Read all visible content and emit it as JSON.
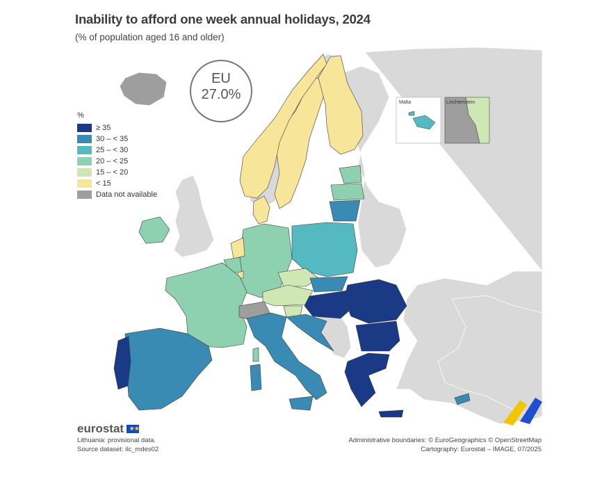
{
  "title": "Inability to afford one week annual holidays, 2024",
  "subtitle": "(% of population aged 16 and older)",
  "eu_badge": {
    "label": "EU",
    "value": "27.0%"
  },
  "legend": {
    "unit": "%",
    "items": [
      {
        "label": "≥ 35",
        "color": "#1a3a86"
      },
      {
        "label": "30 – < 35",
        "color": "#3a8bb4"
      },
      {
        "label": "25 – < 30",
        "color": "#55b9c2"
      },
      {
        "label": "20 – < 25",
        "color": "#8ed1b0"
      },
      {
        "label": "15 – < 20",
        "color": "#cfe8b3"
      },
      {
        "label": "< 15",
        "color": "#f7e59a"
      },
      {
        "label": "Data not available",
        "color": "#9e9e9e"
      }
    ]
  },
  "insets": {
    "malta": "Malta",
    "liechtenstein": "Liechtenstein"
  },
  "logo": "eurostat",
  "notes": {
    "provisional": "Lithuania: provisional data.",
    "source": "Source dataset: ilc_mdes02"
  },
  "credits": {
    "boundaries": "Administrative boundaries: © EuroGeographics © OpenStreetMap",
    "cartography": "Cartography: Eurostat – IMAGE, 07/2025"
  }
}
